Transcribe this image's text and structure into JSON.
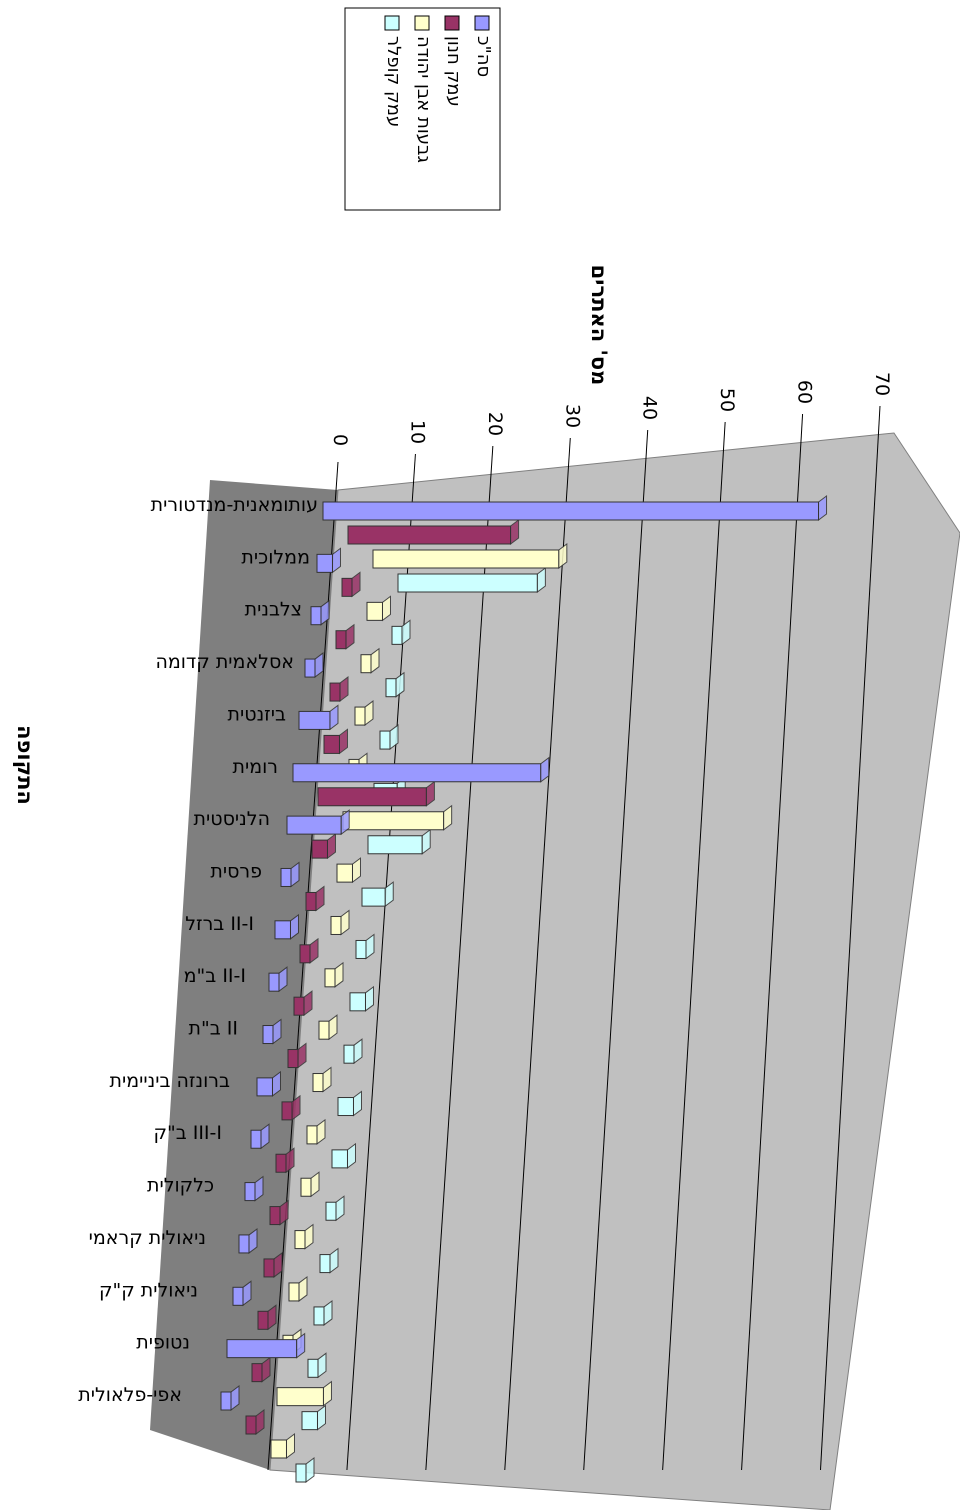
{
  "chart_data": {
    "type": "bar",
    "orientation": "3d-horizontal-clustered",
    "rotated_view": "90deg-clockwise",
    "categories": [
      "עותומאנית-מנדטורית",
      "ממלוכית",
      "צלבנית",
      "אסלאמית קדומה",
      "ביזנטית",
      "רומית",
      "הלניסטית",
      "פרסית",
      "ברזל II-I",
      "ב\"מ II-I",
      "ב\"ת II",
      "ברונזה ביניימית",
      "ב\"ק III-I",
      "כלקולית",
      "ניאולית קראמי",
      "ניאולית ק\"ק",
      "נטופית",
      "אפי-פלאולית"
    ],
    "series": [
      {
        "name": "סה\"כ",
        "color": "#9999ff",
        "values": [
          64,
          2,
          0,
          0,
          4,
          32,
          7,
          1,
          2,
          1,
          1,
          2,
          0,
          0,
          1,
          1,
          9,
          1
        ]
      },
      {
        "name": "עמק חנון",
        "color": "#993366",
        "values": [
          21,
          1,
          0,
          0,
          2,
          14,
          2,
          0,
          0,
          0,
          0,
          0,
          0,
          0,
          0,
          1,
          1,
          0
        ]
      },
      {
        "name": "גבעות אבן יהודה",
        "color": "#ffffcc",
        "values": [
          24,
          2,
          0,
          0,
          1,
          13,
          2,
          1,
          0,
          0,
          0,
          0,
          0,
          0,
          1,
          0,
          6,
          2
        ]
      },
      {
        "name": "עמק קופלר",
        "color": "#ccffff",
        "values": [
          18,
          0,
          0,
          0,
          3,
          7,
          3,
          0,
          2,
          1,
          2,
          2,
          1,
          0,
          0,
          0,
          2,
          0
        ]
      }
    ],
    "xlabel": "התקופה",
    "ylabel": "מס' האתרים",
    "y_ticks": [
      "0",
      "10",
      "20",
      "30",
      "40",
      "50",
      "60",
      "70"
    ],
    "ylim": [
      0,
      70
    ],
    "grid": true,
    "legend": "top-right"
  }
}
